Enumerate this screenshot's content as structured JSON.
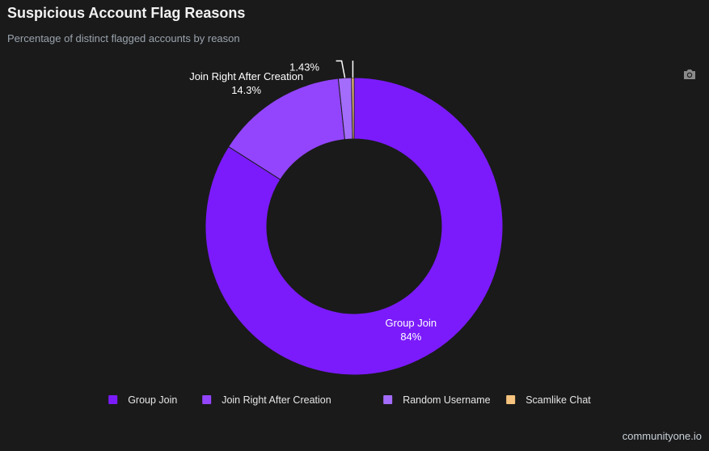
{
  "header": {
    "title": "Suspicious Account Flag Reasons",
    "subtitle": "Percentage of distinct flagged accounts by reason"
  },
  "toolbar": {
    "camera_icon": "camera-icon"
  },
  "footer": {
    "brand": "communityone.io"
  },
  "colors": {
    "background": "#1a1a1a",
    "slice_border": "#1a1a1a",
    "label_text": "#ffffff",
    "legend_text": "#e6e6e6"
  },
  "chart_data": {
    "type": "pie",
    "donut": true,
    "title": "Suspicious Account Flag Reasons",
    "subtitle": "Percentage of distinct flagged accounts by reason",
    "legend_position": "bottom",
    "slices": [
      {
        "label": "Group Join",
        "value": 84.0,
        "color": "#7b1bfb",
        "shown_label": "Group Join",
        "shown_value": "84%",
        "label_inside": true
      },
      {
        "label": "Join Right After Creation",
        "value": 14.3,
        "color": "#9345fd",
        "shown_label": "Join Right After Creation",
        "shown_value": "14.3%",
        "label_inside": false
      },
      {
        "label": "Random Username",
        "value": 1.43,
        "color": "#a46cfa",
        "shown_label": "",
        "shown_value": "1.43%",
        "label_inside": false
      },
      {
        "label": "Scamlike Chat",
        "value": 0.27,
        "color": "#f6c47f",
        "shown_label": "",
        "shown_value": "",
        "label_inside": false
      }
    ]
  }
}
